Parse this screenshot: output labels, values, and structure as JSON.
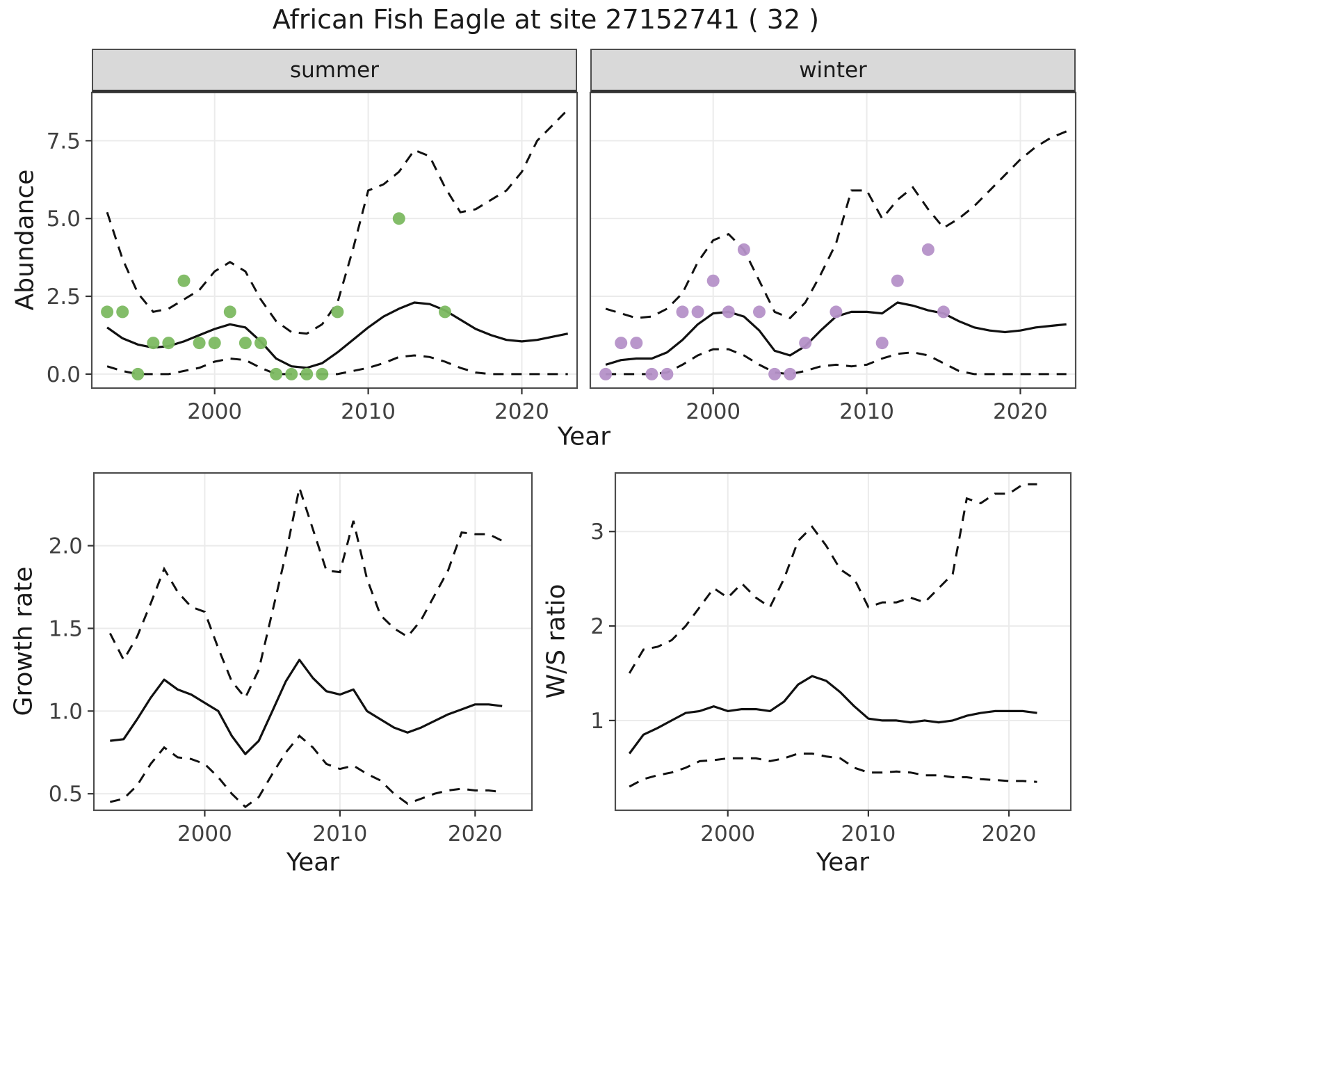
{
  "title": "African Fish Eagle at site 27152741 ( 32 )",
  "colors": {
    "fit_line": "#111111",
    "ci_line": "#111111",
    "grid": "#ebebeb",
    "panel_border": "#4d4d4d",
    "tick_label": "#404040",
    "strip_bg": "#d9d9d9",
    "summer_points": "#7cb961",
    "winter_points": "#b591c8"
  },
  "chart_data": [
    {
      "id": "abundance-by-season",
      "type": "line",
      "xlabel": "Year",
      "ylabel": "Abundance",
      "x_ticks": [
        2000,
        2010,
        2020
      ],
      "x_tick_labels": [
        "2000",
        "2010",
        "2020"
      ],
      "y_ticks": [
        0.0,
        2.5,
        5.0,
        7.5
      ],
      "y_tick_labels": [
        "0.0",
        "2.5",
        "5.0",
        "7.5"
      ],
      "xlim": [
        1992.0,
        2023.6
      ],
      "ylim": [
        -0.45,
        9.05
      ],
      "legend": "none",
      "grid": "major",
      "facets": [
        {
          "label": "summer",
          "point_color": "#7cb961",
          "years": [
            1993,
            1994,
            1995,
            1996,
            1997,
            1998,
            1999,
            2000,
            2001,
            2002,
            2003,
            2004,
            2005,
            2006,
            2007,
            2008,
            2009,
            2010,
            2011,
            2012,
            2013,
            2014,
            2015,
            2016,
            2017,
            2018,
            2019,
            2020,
            2021,
            2022,
            2023
          ],
          "fit": [
            1.5,
            1.15,
            0.95,
            0.85,
            0.9,
            1.05,
            1.25,
            1.45,
            1.6,
            1.5,
            1.05,
            0.5,
            0.25,
            0.2,
            0.35,
            0.7,
            1.1,
            1.5,
            1.85,
            2.1,
            2.3,
            2.25,
            2.05,
            1.75,
            1.45,
            1.25,
            1.1,
            1.05,
            1.1,
            1.2,
            1.3
          ],
          "upper": [
            5.2,
            3.7,
            2.6,
            2.0,
            2.1,
            2.4,
            2.7,
            3.3,
            3.6,
            3.3,
            2.4,
            1.7,
            1.35,
            1.3,
            1.6,
            2.3,
            4.0,
            5.9,
            6.1,
            6.5,
            7.2,
            7.0,
            6.0,
            5.2,
            5.3,
            5.6,
            5.9,
            6.5,
            7.5,
            8.0,
            8.5
          ],
          "lower": [
            0.25,
            0.1,
            0.0,
            0.0,
            0.0,
            0.1,
            0.2,
            0.4,
            0.5,
            0.45,
            0.2,
            0.0,
            0.0,
            0.0,
            0.0,
            0.0,
            0.1,
            0.2,
            0.35,
            0.55,
            0.6,
            0.55,
            0.4,
            0.2,
            0.05,
            0.0,
            0.0,
            0.0,
            0.0,
            0.0,
            0.0
          ],
          "points": [
            [
              1993,
              2
            ],
            [
              1994,
              2
            ],
            [
              1995,
              0
            ],
            [
              1996,
              1
            ],
            [
              1997,
              1
            ],
            [
              1998,
              3
            ],
            [
              1999,
              1
            ],
            [
              2000,
              1
            ],
            [
              2001,
              2
            ],
            [
              2002,
              1
            ],
            [
              2003,
              1
            ],
            [
              2004,
              0
            ],
            [
              2005,
              0
            ],
            [
              2006,
              0
            ],
            [
              2007,
              0
            ],
            [
              2008,
              2
            ],
            [
              2012,
              5
            ],
            [
              2015,
              2
            ]
          ]
        },
        {
          "label": "winter",
          "point_color": "#b591c8",
          "years": [
            1993,
            1994,
            1995,
            1996,
            1997,
            1998,
            1999,
            2000,
            2001,
            2002,
            2003,
            2004,
            2005,
            2006,
            2007,
            2008,
            2009,
            2010,
            2011,
            2012,
            2013,
            2014,
            2015,
            2016,
            2017,
            2018,
            2019,
            2020,
            2021,
            2022,
            2023
          ],
          "fit": [
            0.3,
            0.45,
            0.5,
            0.5,
            0.7,
            1.1,
            1.6,
            1.95,
            2.0,
            1.85,
            1.4,
            0.75,
            0.6,
            0.9,
            1.4,
            1.85,
            2.0,
            2.0,
            1.95,
            2.3,
            2.2,
            2.05,
            1.95,
            1.7,
            1.5,
            1.4,
            1.35,
            1.4,
            1.5,
            1.55,
            1.6
          ],
          "upper": [
            2.1,
            1.95,
            1.8,
            1.85,
            2.1,
            2.6,
            3.6,
            4.3,
            4.5,
            4.0,
            3.0,
            2.0,
            1.8,
            2.3,
            3.2,
            4.2,
            5.9,
            5.9,
            5.0,
            5.6,
            6.0,
            5.3,
            4.7,
            5.0,
            5.4,
            5.9,
            6.4,
            6.9,
            7.3,
            7.6,
            7.8
          ],
          "lower": [
            0.0,
            0.0,
            0.0,
            0.0,
            0.05,
            0.3,
            0.6,
            0.8,
            0.8,
            0.6,
            0.3,
            0.05,
            0.0,
            0.1,
            0.25,
            0.3,
            0.25,
            0.3,
            0.5,
            0.65,
            0.7,
            0.6,
            0.35,
            0.1,
            0.0,
            0.0,
            0.0,
            0.0,
            0.0,
            0.0,
            0.0
          ],
          "points": [
            [
              1993,
              0
            ],
            [
              1994,
              1
            ],
            [
              1995,
              1
            ],
            [
              1996,
              0
            ],
            [
              1997,
              0
            ],
            [
              1998,
              2
            ],
            [
              1999,
              2
            ],
            [
              2000,
              3
            ],
            [
              2001,
              2
            ],
            [
              2002,
              4
            ],
            [
              2003,
              2
            ],
            [
              2004,
              0
            ],
            [
              2005,
              0
            ],
            [
              2006,
              1
            ],
            [
              2008,
              2
            ],
            [
              2011,
              1
            ],
            [
              2012,
              3
            ],
            [
              2014,
              4
            ],
            [
              2015,
              2
            ]
          ]
        }
      ]
    },
    {
      "id": "growth-rate",
      "type": "line",
      "xlabel": "Year",
      "ylabel": "Growth rate",
      "x_ticks": [
        2000,
        2010,
        2020
      ],
      "x_tick_labels": [
        "2000",
        "2010",
        "2020"
      ],
      "y_ticks": [
        0.5,
        1.0,
        1.5,
        2.0
      ],
      "y_tick_labels": [
        "0.5",
        "1.0",
        "1.5",
        "2.0"
      ],
      "xlim": [
        1991.8,
        2024.2
      ],
      "ylim": [
        0.4,
        2.44
      ],
      "legend": "none",
      "grid": "major",
      "years": [
        1993,
        1994,
        1995,
        1996,
        1997,
        1998,
        1999,
        2000,
        2001,
        2002,
        2003,
        2004,
        2005,
        2006,
        2007,
        2008,
        2009,
        2010,
        2011,
        2012,
        2013,
        2014,
        2015,
        2016,
        2017,
        2018,
        2019,
        2020,
        2021,
        2022
      ],
      "fit": [
        0.82,
        0.83,
        0.95,
        1.08,
        1.19,
        1.13,
        1.1,
        1.05,
        1.0,
        0.85,
        0.74,
        0.82,
        1.0,
        1.18,
        1.31,
        1.2,
        1.12,
        1.1,
        1.13,
        1.0,
        0.95,
        0.9,
        0.87,
        0.9,
        0.94,
        0.98,
        1.01,
        1.04,
        1.04,
        1.03
      ],
      "upper": [
        1.47,
        1.31,
        1.45,
        1.65,
        1.86,
        1.72,
        1.63,
        1.6,
        1.38,
        1.18,
        1.08,
        1.25,
        1.6,
        1.95,
        2.35,
        2.1,
        1.85,
        1.84,
        2.15,
        1.8,
        1.58,
        1.5,
        1.45,
        1.55,
        1.7,
        1.85,
        2.08,
        2.07,
        2.07,
        2.03
      ],
      "lower": [
        0.45,
        0.47,
        0.55,
        0.68,
        0.78,
        0.72,
        0.71,
        0.68,
        0.6,
        0.5,
        0.42,
        0.48,
        0.62,
        0.75,
        0.85,
        0.78,
        0.68,
        0.65,
        0.67,
        0.62,
        0.58,
        0.5,
        0.44,
        0.47,
        0.5,
        0.52,
        0.53,
        0.52,
        0.52,
        0.51
      ]
    },
    {
      "id": "ws-ratio",
      "type": "line",
      "xlabel": "Year",
      "ylabel": "W/S ratio",
      "x_ticks": [
        2000,
        2010,
        2020
      ],
      "x_tick_labels": [
        "2000",
        "2010",
        "2020"
      ],
      "y_ticks": [
        1,
        2,
        3
      ],
      "y_tick_labels": [
        "1",
        "2",
        "3"
      ],
      "xlim": [
        1992.0,
        2024.4
      ],
      "ylim": [
        0.05,
        3.62
      ],
      "legend": "none",
      "grid": "major",
      "years": [
        1993,
        1994,
        1995,
        1996,
        1997,
        1998,
        1999,
        2000,
        2001,
        2002,
        2003,
        2004,
        2005,
        2006,
        2007,
        2008,
        2009,
        2010,
        2011,
        2012,
        2013,
        2014,
        2015,
        2016,
        2017,
        2018,
        2019,
        2020,
        2021,
        2022
      ],
      "fit": [
        0.65,
        0.85,
        0.92,
        1.0,
        1.08,
        1.1,
        1.15,
        1.1,
        1.12,
        1.12,
        1.1,
        1.2,
        1.38,
        1.47,
        1.42,
        1.3,
        1.15,
        1.02,
        1.0,
        1.0,
        0.98,
        1.0,
        0.98,
        1.0,
        1.05,
        1.08,
        1.1,
        1.1,
        1.1,
        1.08
      ],
      "upper": [
        1.5,
        1.75,
        1.78,
        1.85,
        2.0,
        2.2,
        2.4,
        2.3,
        2.45,
        2.3,
        2.2,
        2.5,
        2.9,
        3.05,
        2.85,
        2.6,
        2.5,
        2.2,
        2.25,
        2.25,
        2.3,
        2.25,
        2.4,
        2.55,
        3.35,
        3.3,
        3.4,
        3.4,
        3.5,
        3.5
      ],
      "lower": [
        0.3,
        0.38,
        0.42,
        0.45,
        0.5,
        0.57,
        0.58,
        0.6,
        0.6,
        0.6,
        0.57,
        0.6,
        0.65,
        0.65,
        0.62,
        0.6,
        0.5,
        0.45,
        0.45,
        0.46,
        0.45,
        0.42,
        0.42,
        0.4,
        0.4,
        0.38,
        0.37,
        0.36,
        0.36,
        0.35
      ]
    }
  ]
}
